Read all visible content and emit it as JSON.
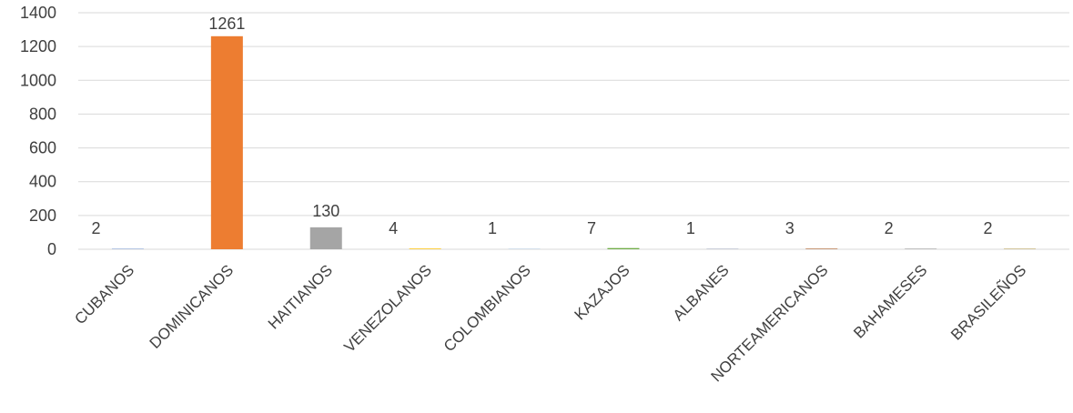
{
  "chart_data": {
    "type": "bar",
    "categories": [
      "CUBANOS",
      "DOMINICANOS",
      "HAITIANOS",
      "VENEZOLANOS",
      "COLOMBIANOS",
      "KAZAJOS",
      "ALBANES",
      "NORTEAMERICANOS",
      "BAHAMESES",
      "BRASILEÑOS"
    ],
    "values": [
      2,
      1261,
      130,
      4,
      1,
      7,
      1,
      3,
      2,
      2
    ],
    "data_labels": [
      "2",
      "1261",
      "130",
      "4",
      "1",
      "7",
      "1",
      "3",
      "2",
      "2"
    ],
    "bar_colors": [
      "#4472c4",
      "#ed7d31",
      "#a5a5a5",
      "#ffc000",
      "#5b9bd5",
      "#70ad47",
      "#264478",
      "#9e480e",
      "#636363",
      "#997300"
    ],
    "ylim": [
      0,
      1400
    ],
    "yticks": [
      0,
      200,
      400,
      600,
      800,
      1000,
      1200,
      1400
    ],
    "ytick_labels": [
      "0",
      "200",
      "400",
      "600",
      "800",
      "1000",
      "1200",
      "1400"
    ],
    "grid": true,
    "legend": "none"
  }
}
